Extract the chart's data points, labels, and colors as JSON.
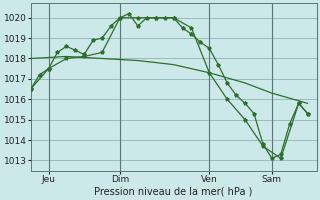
{
  "background_color": "#cce8e8",
  "grid_color": "#99bbbb",
  "line_color": "#2d6e2d",
  "xlabel": "Pression niveau de la mer( hPa )",
  "ylim": [
    1012.5,
    1020.7
  ],
  "yticks": [
    1013,
    1014,
    1015,
    1016,
    1017,
    1018,
    1019,
    1020
  ],
  "xlim": [
    0,
    32
  ],
  "day_labels": [
    "Jeu",
    "Dim",
    "Ven",
    "Sam"
  ],
  "day_positions": [
    2,
    10,
    20,
    27
  ],
  "vline_positions": [
    2,
    10,
    20,
    27
  ],
  "series1_x": [
    0,
    1,
    2,
    3,
    4,
    5,
    6,
    7,
    8,
    9,
    10,
    11,
    12,
    13,
    14,
    15,
    16,
    17,
    18,
    19,
    20,
    21,
    22,
    23,
    24,
    25,
    26,
    27,
    28,
    29,
    30,
    31
  ],
  "series1_y": [
    1016.5,
    1017.2,
    1017.5,
    1018.3,
    1018.6,
    1018.4,
    1018.2,
    1018.9,
    1019.0,
    1019.6,
    1020.0,
    1020.2,
    1019.6,
    1020.0,
    1020.0,
    1020.0,
    1020.0,
    1019.5,
    1019.2,
    1018.8,
    1018.5,
    1017.7,
    1016.8,
    1016.2,
    1015.8,
    1015.3,
    1013.8,
    1013.1,
    1013.3,
    1014.8,
    1015.8,
    1015.3
  ],
  "series2_x": [
    0,
    2,
    4,
    6,
    8,
    10,
    12,
    14,
    16,
    18,
    20,
    22,
    24,
    26,
    28,
    30,
    31
  ],
  "series2_y": [
    1016.5,
    1017.5,
    1018.0,
    1018.1,
    1018.3,
    1020.0,
    1020.0,
    1020.0,
    1020.0,
    1019.5,
    1017.3,
    1016.0,
    1015.0,
    1013.7,
    1013.1,
    1015.8,
    1015.3
  ],
  "series3_x": [
    0,
    4,
    8,
    12,
    16,
    20,
    24,
    27,
    31
  ],
  "series3_y": [
    1018.0,
    1018.1,
    1018.0,
    1017.9,
    1017.7,
    1017.3,
    1016.8,
    1016.3,
    1015.8
  ]
}
